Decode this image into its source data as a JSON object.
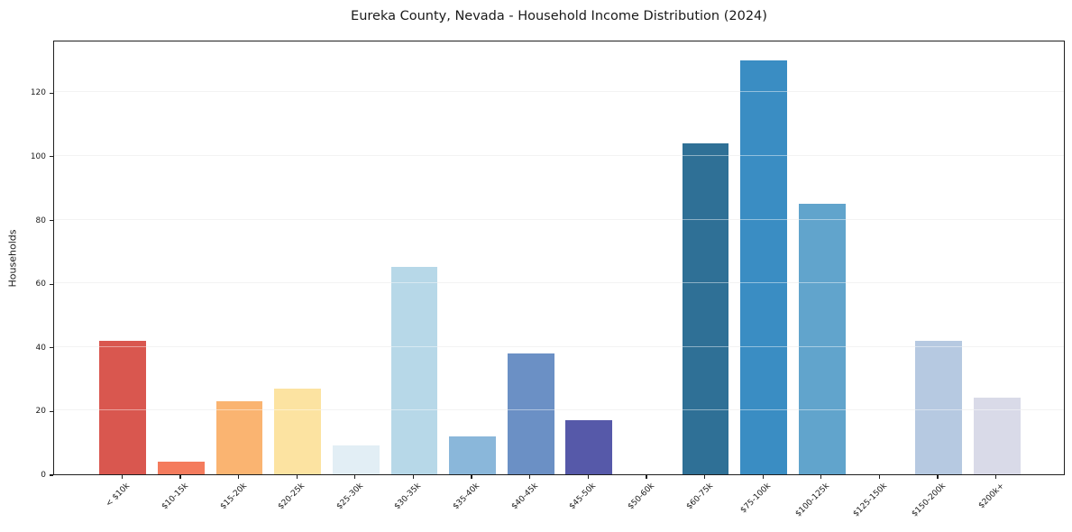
{
  "chart_data": {
    "type": "bar",
    "title": "Eureka County, Nevada - Household Income Distribution (2024)",
    "xlabel": "",
    "ylabel": "Households",
    "categories": [
      "< $10k",
      "$10-15k",
      "$15-20k",
      "$20-25k",
      "$25-30k",
      "$30-35k",
      "$35-40k",
      "$40-45k",
      "$45-50k",
      "$50-60k",
      "$60-75k",
      "$75-100k",
      "$100-125k",
      "$125-150k",
      "$150-200k",
      "$200k+"
    ],
    "values": [
      42,
      4,
      23,
      27,
      9,
      65,
      12,
      38,
      17,
      0,
      104,
      130,
      85,
      0,
      42,
      24
    ],
    "bar_colors": [
      "#d9574f",
      "#f47b5d",
      "#fab471",
      "#fce3a1",
      "#e2eef5",
      "#b7d8e8",
      "#8ab7da",
      "#6b90c5",
      "#5659a9",
      null,
      "#2f7096",
      "#3a8dc3",
      "#61a4cc",
      null,
      "#b6c9e1",
      "#d9dae8"
    ],
    "yticks": [
      0,
      20,
      40,
      60,
      80,
      100,
      120
    ],
    "ylim": [
      0,
      136.5
    ],
    "grid": "horizontal",
    "legend": "none"
  }
}
